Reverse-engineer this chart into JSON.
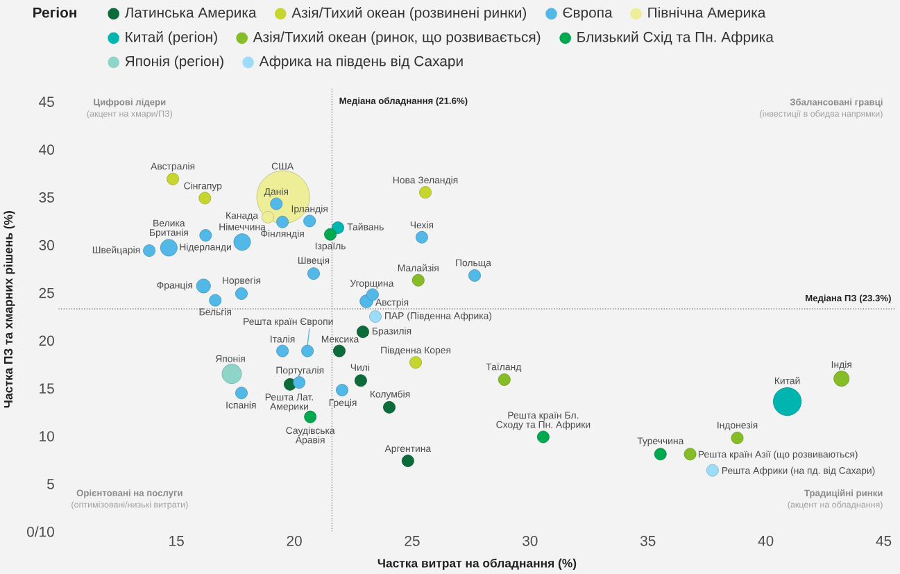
{
  "chart_data": {
    "type": "bubble",
    "xlabel": "Частка витрат на обладнання (%)",
    "ylabel": "Частка ПЗ та хмарних рішень (%)",
    "legend_title": "Регіон",
    "legend": "top",
    "grid": false,
    "xlim": [
      10,
      45.5
    ],
    "ylim": [
      0,
      46.5
    ],
    "xticks": [
      15,
      20,
      25,
      30,
      35,
      40,
      45
    ],
    "yticks": [
      {
        "value": 0,
        "label": "0/10"
      },
      5,
      10,
      15,
      20,
      25,
      30,
      35,
      40,
      45
    ],
    "ref_lines": [
      {
        "axis": "x",
        "value": 21.6,
        "label": "Медіана обладнання (21.6%)",
        "line_style": "dotted",
        "color": "#888888"
      },
      {
        "axis": "y",
        "value": 23.3,
        "label": "Медіана ПЗ (23.3%)",
        "line_style": "dotted",
        "color": "#888888"
      }
    ],
    "series": [
      {
        "name": "Латинська Америка",
        "color": "#0b6b3a",
        "x": [
          21.91,
          22.91,
          22.82,
          24.03,
          24.82,
          19.82
        ],
        "values": [
          18.9,
          20.9,
          15.8,
          13.0,
          7.4,
          15.4
        ],
        "sizes": [
          0.05,
          0.05,
          0.05,
          0.05,
          0.05,
          0.05
        ],
        "value_labels": [
          "Мексика",
          "Бразилія",
          "Чилі",
          "Колумбія",
          "Аргентина",
          "Решта Лат.\nАмерики"
        ]
      },
      {
        "name": "Азія/Тихий океан (розвинені ринки)",
        "color": "#c7d62e",
        "x": [
          14.85,
          16.21,
          25.56,
          25.15
        ],
        "values": [
          36.9,
          34.9,
          35.5,
          17.7
        ],
        "sizes": [
          0.05,
          0.05,
          0.05,
          0.05
        ],
        "value_labels": [
          "Австралія",
          "Сінгапур",
          "Нова Зеландія",
          "Південна Корея"
        ]
      },
      {
        "name": "Європа",
        "color": "#52b8e8",
        "x": [
          19.24,
          20.65,
          19.5,
          17.79,
          16.24,
          14.68,
          13.85,
          16.15,
          16.65,
          17.76,
          20.82,
          25.41,
          27.65,
          23.32,
          23.06,
          20.56,
          19.5,
          20.21,
          17.76,
          22.03
        ],
        "values": [
          34.3,
          32.5,
          32.4,
          30.3,
          31.0,
          29.7,
          29.4,
          25.7,
          24.2,
          24.9,
          27.0,
          30.8,
          26.8,
          24.8,
          24.1,
          18.9,
          18.9,
          15.6,
          14.5,
          14.8
        ],
        "sizes": [
          0.05,
          0.05,
          0.05,
          0.1,
          0.05,
          0.1,
          0.05,
          0.07,
          0.05,
          0.05,
          0.05,
          0.05,
          0.05,
          0.05,
          0.06,
          0.05,
          0.05,
          0.05,
          0.05,
          0.05
        ],
        "value_labels": [
          "Данія",
          "Ірландія",
          "Фінляндія",
          "Німеччина",
          "Велика\nБританія",
          "Нідерланди",
          "Швейцарія",
          "Франція",
          "Бельгія",
          "Норвегія",
          "Швеція",
          "Чехія",
          "Польща",
          "Угорщина",
          "Австрія",
          "Решта країн Європи",
          "Італія",
          "Португалія",
          "Іспанія",
          "Греція"
        ]
      },
      {
        "name": "Північна Америка",
        "color": "#eeee99",
        "x": [
          19.53,
          18.88
        ],
        "values": [
          35.0,
          32.9
        ],
        "sizes": [
          1,
          0.05
        ],
        "value_labels": [
          "США",
          "Канада"
        ]
      },
      {
        "name": "Китай (регіон)",
        "color": "#00b5b0",
        "x": [
          21.85,
          40.91
        ],
        "values": [
          31.8,
          13.6
        ],
        "sizes": [
          0.05,
          0.28
        ],
        "value_labels": [
          "Тайвань",
          "Китай"
        ]
      },
      {
        "name": "Азія/Тихий океан (ринок, що розвивається)",
        "color": "#86bc25",
        "x": [
          25.26,
          28.91,
          43.21,
          38.79,
          36.79
        ],
        "values": [
          26.3,
          15.9,
          16.0,
          9.8,
          8.1
        ],
        "sizes": [
          0.05,
          0.05,
          0.084,
          0.05,
          0.05
        ],
        "value_labels": [
          "Малайзія",
          "Таїланд",
          "Індія",
          "Індонезія",
          "Решта країн Азії (що розвиваються)"
        ]
      },
      {
        "name": "Близький Схід та Пн. Африка",
        "color": "#00a94f",
        "x": [
          21.53,
          20.68,
          30.56,
          35.53
        ],
        "values": [
          31.1,
          12.0,
          9.9,
          8.1
        ],
        "sizes": [
          0.05,
          0.05,
          0.05,
          0.05
        ],
        "value_labels": [
          "Ізраїль",
          "Саудівська\nАравія",
          "Решта країн Бл.\nСходу та Пн. Африки",
          "Туреччина"
        ]
      },
      {
        "name": "Японія (регіон)",
        "color": "#8fd4c9",
        "x": [
          17.35
        ],
        "values": [
          16.5
        ],
        "sizes": [
          0.136
        ],
        "value_labels": [
          "Японія"
        ]
      },
      {
        "name": "Африка на південь від Сахари",
        "color": "#9ddcf9",
        "x": [
          23.44,
          37.74
        ],
        "values": [
          22.5,
          6.4
        ],
        "sizes": [
          0.05,
          0.05
        ],
        "value_labels": [
          "ПАР (Південна Африка)",
          "Решта Африки (на пд. від Сахари)"
        ]
      }
    ],
    "annotations": [
      "Цифрові лідери",
      "(акцент на хмари/ПЗ)",
      "Збалансовані гравці",
      "(інвестиції в обидва напрямки)",
      "Орієнтовані на послуги",
      "(оптимізовані/низькі витрати)",
      "Традиційні ринки",
      "(акцент на обладнання)"
    ]
  }
}
